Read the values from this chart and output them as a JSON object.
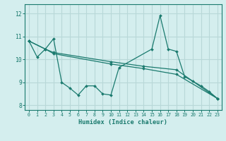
{
  "bg_color": "#d4eeee",
  "grid_color": "#b8d8d8",
  "line_color": "#1a7a6e",
  "xlabel": "Humidex (Indice chaleur)",
  "ylim": [
    7.8,
    12.4
  ],
  "xlim": [
    -0.5,
    23.5
  ],
  "yticks": [
    8,
    9,
    10,
    11,
    12
  ],
  "xticks": [
    0,
    1,
    2,
    3,
    4,
    5,
    6,
    7,
    8,
    9,
    10,
    11,
    12,
    13,
    14,
    15,
    16,
    17,
    18,
    19,
    20,
    21,
    22,
    23
  ],
  "series0_x": [
    0,
    1,
    2,
    3,
    4,
    5,
    6,
    7,
    8,
    9,
    10,
    11,
    15,
    16,
    17,
    18,
    19,
    20,
    21,
    22,
    23
  ],
  "series0_y": [
    10.8,
    10.1,
    10.45,
    10.9,
    9.0,
    8.75,
    8.45,
    8.85,
    8.85,
    8.5,
    8.45,
    9.65,
    10.45,
    11.9,
    10.45,
    10.35,
    9.25,
    9.05,
    8.85,
    8.6,
    8.3
  ],
  "series1_x": [
    0,
    2,
    3,
    10,
    14,
    18,
    23
  ],
  "series1_y": [
    10.8,
    10.45,
    10.3,
    9.9,
    9.7,
    9.55,
    8.3
  ],
  "series2_x": [
    0,
    2,
    3,
    10,
    14,
    18,
    23
  ],
  "series2_y": [
    10.8,
    10.45,
    10.25,
    9.8,
    9.6,
    9.35,
    8.3
  ]
}
